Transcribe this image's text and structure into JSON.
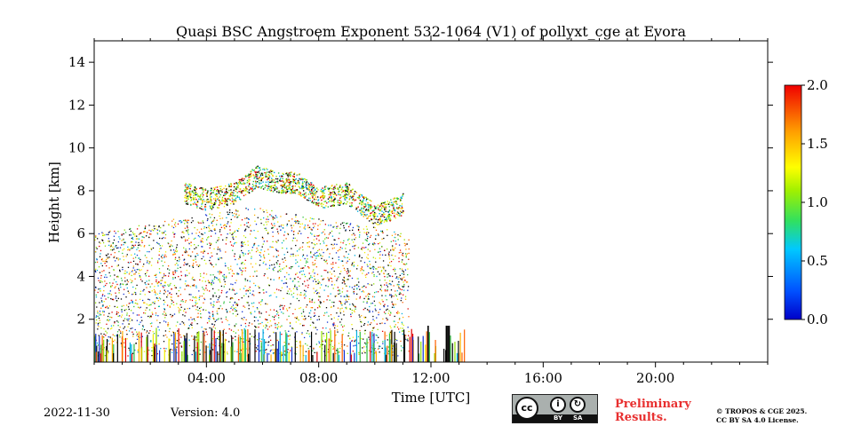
{
  "chart_data": {
    "type": "heatmap",
    "title": "Quasi BSC Angstroem Exponent 532-1064 (V1) of pollyxt_cge at Evora",
    "xlabel": "Time [UTC]",
    "ylabel": "Height [km]",
    "xlim": [
      0,
      24
    ],
    "ylim": [
      0,
      15
    ],
    "x_ticks": [
      4,
      8,
      12,
      16,
      20
    ],
    "x_tick_labels": [
      "04:00",
      "08:00",
      "12:00",
      "16:00",
      "20:00"
    ],
    "y_ticks": [
      2,
      4,
      6,
      8,
      10,
      12,
      14
    ],
    "y_tick_labels": [
      "2",
      "4",
      "6",
      "8",
      "10",
      "12",
      "14"
    ],
    "colorbar": {
      "range": [
        0.0,
        2.0
      ],
      "ticks": [
        0.0,
        0.5,
        1.0,
        1.5,
        2.0
      ],
      "tick_labels": [
        "0.0",
        "0.5",
        "1.0",
        "1.5",
        "2.0"
      ],
      "colormap": "jet"
    },
    "features": {
      "aerosol_layer": {
        "time_range": [
          0,
          11.2
        ],
        "height_range": [
          0,
          7
        ]
      },
      "cirrus_layer": [
        {
          "time": 3.2,
          "height": 7.8
        },
        {
          "time": 4.0,
          "height": 7.5
        },
        {
          "time": 5.0,
          "height": 7.8
        },
        {
          "time": 5.8,
          "height": 8.6
        },
        {
          "time": 6.5,
          "height": 8.3
        },
        {
          "time": 7.2,
          "height": 8.3
        },
        {
          "time": 8.0,
          "height": 7.6
        },
        {
          "time": 9.0,
          "height": 7.8
        },
        {
          "time": 10.0,
          "height": 6.8
        },
        {
          "time": 10.5,
          "height": 7.0
        },
        {
          "time": 11.0,
          "height": 7.3
        }
      ],
      "low_spikes_time_range": [
        0,
        13.2
      ]
    }
  },
  "footer": {
    "date": "2022-11-30",
    "version": "Version: 4.0",
    "preliminary_line1": "Preliminary",
    "preliminary_line2": "Results.",
    "copyright_line1": "© TROPOS & CGE 2025.",
    "copyright_line2": "CC BY SA 4.0 License."
  },
  "license_badge": {
    "cc": "cc",
    "by": "BY",
    "sa": "SA"
  }
}
